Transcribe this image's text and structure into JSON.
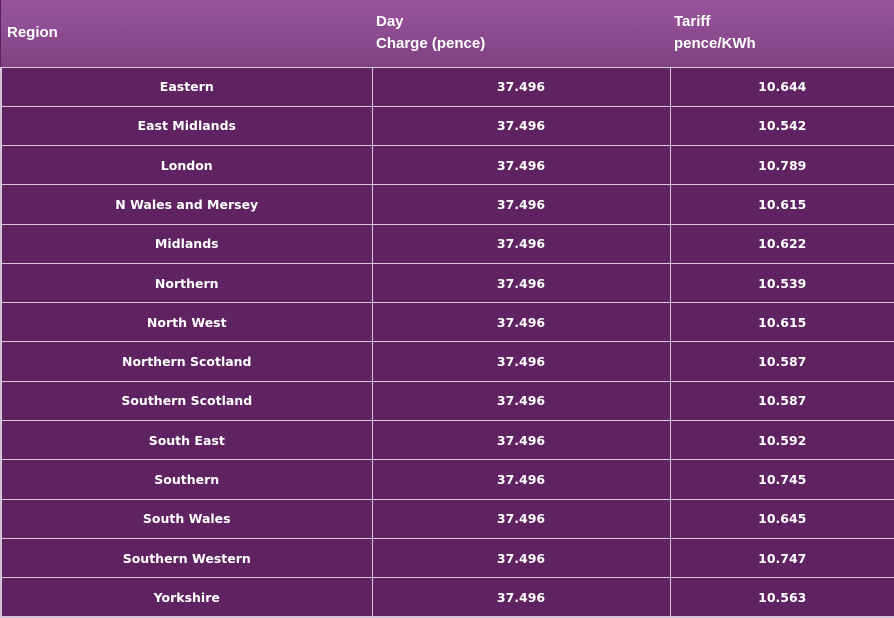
{
  "table": {
    "headers": {
      "region": "Region",
      "day_line1": "Day",
      "day_line2": "Charge (pence)",
      "tariff_line1": "Tariff",
      "tariff_line2": "pence/KWh"
    },
    "rows": [
      {
        "region": "Eastern",
        "day_charge": "37.496",
        "tariff": "10.644"
      },
      {
        "region": "East Midlands",
        "day_charge": "37.496",
        "tariff": "10.542"
      },
      {
        "region": "London",
        "day_charge": "37.496",
        "tariff": "10.789"
      },
      {
        "region": "N Wales and Mersey",
        "day_charge": "37.496",
        "tariff": "10.615"
      },
      {
        "region": "Midlands",
        "day_charge": "37.496",
        "tariff": "10.622"
      },
      {
        "region": "Northern",
        "day_charge": "37.496",
        "tariff": "10.539"
      },
      {
        "region": "North West",
        "day_charge": "37.496",
        "tariff": "10.615"
      },
      {
        "region": "Northern Scotland",
        "day_charge": "37.496",
        "tariff": "10.587"
      },
      {
        "region": "Southern Scotland",
        "day_charge": "37.496",
        "tariff": "10.587"
      },
      {
        "region": "South East",
        "day_charge": "37.496",
        "tariff": "10.592"
      },
      {
        "region": "Southern",
        "day_charge": "37.496",
        "tariff": "10.745"
      },
      {
        "region": "South Wales",
        "day_charge": "37.496",
        "tariff": "10.645"
      },
      {
        "region": "Southern Western",
        "day_charge": "37.496",
        "tariff": "10.747"
      },
      {
        "region": "Yorkshire",
        "day_charge": "37.496",
        "tariff": "10.563"
      }
    ]
  }
}
